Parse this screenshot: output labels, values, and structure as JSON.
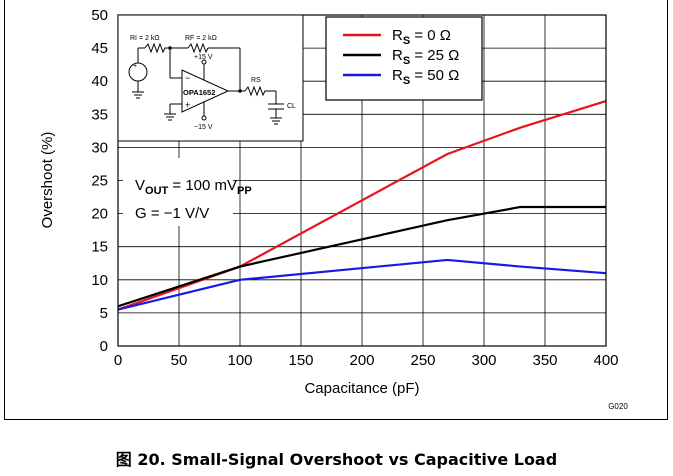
{
  "chart_data": {
    "type": "line",
    "xlabel": "Capacitance (pF)",
    "ylabel": "Overshoot (%)",
    "xlim": [
      0,
      400
    ],
    "ylim": [
      0,
      50
    ],
    "x_ticks": [
      0,
      50,
      100,
      150,
      200,
      250,
      300,
      350,
      400
    ],
    "y_ticks": [
      0,
      5,
      10,
      15,
      20,
      25,
      30,
      35,
      40,
      45,
      50
    ],
    "grid": true,
    "legend_position": "top-right",
    "series": [
      {
        "name": "RS = 0 Ω",
        "color": "#e8141b",
        "x": [
          0,
          100,
          270,
          330,
          400
        ],
        "values": [
          5.5,
          12,
          29,
          33,
          37
        ]
      },
      {
        "name": "RS = 25 Ω",
        "color": "#000000",
        "x": [
          0,
          100,
          270,
          330,
          400
        ],
        "values": [
          6,
          12,
          19,
          21,
          21
        ]
      },
      {
        "name": "RS = 50 Ω",
        "color": "#1a1ae6",
        "x": [
          0,
          100,
          270,
          330,
          400
        ],
        "values": [
          5.5,
          10,
          13,
          12,
          11
        ]
      }
    ],
    "annotation": {
      "vout": "VOUT = 100 mVPP",
      "gain": "G = −1 V/V"
    },
    "code": "G020"
  },
  "schematic": {
    "ri": "RI = 2 kΩ",
    "rf": "RF = 2 kΩ",
    "vpos": "+15 V",
    "vneg": "−15 V",
    "opamp": "OPA1652",
    "rs": "RS",
    "cl": "CL",
    "minus": "−",
    "plus": "+"
  },
  "caption": "图 20. Small-Signal Overshoot vs Capacitive Load"
}
